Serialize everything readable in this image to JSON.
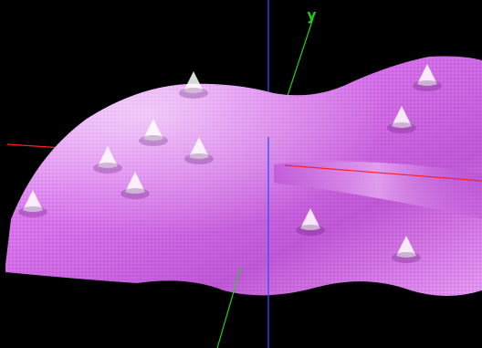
{
  "scene": {
    "background": "#000000",
    "surface_color": "#e07cf0",
    "surface_highlight": "#f6c8ff",
    "surface_shadow": "#8a2fa8",
    "mesh_color": "#ffffff",
    "axes": {
      "x": {
        "color": "#ff2020"
      },
      "y": {
        "color": "#22cc22",
        "label": "y"
      },
      "z": {
        "color": "#2c4cff"
      }
    }
  }
}
